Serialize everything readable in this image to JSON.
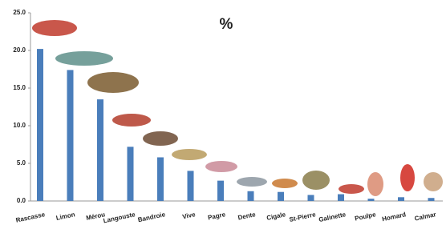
{
  "chart_data": {
    "type": "bar",
    "title": "%",
    "categories": [
      "Rascasse",
      "Limon",
      "Mérou",
      "Langouste",
      "Bandroie",
      "Vive",
      "Pagre",
      "Dente",
      "Cigale",
      "St-Pierre",
      "Galinette",
      "Poulpe",
      "Homard",
      "Calmar"
    ],
    "values": [
      20.2,
      17.4,
      13.5,
      7.2,
      5.8,
      4.0,
      2.7,
      1.3,
      1.2,
      0.8,
      0.9,
      0.3,
      0.5,
      0.4
    ],
    "color": "#4a7ebb",
    "ylim": [
      0,
      25
    ],
    "yticks": [
      {
        "value": 0,
        "label": "0.0"
      },
      {
        "value": 5,
        "label": "5.0"
      },
      {
        "value": 10,
        "label": "10.0"
      },
      {
        "value": 15,
        "label": "15.0"
      },
      {
        "value": 20,
        "label": "20.0"
      },
      {
        "value": 25,
        "label": "25.0"
      }
    ],
    "grid": false
  }
}
